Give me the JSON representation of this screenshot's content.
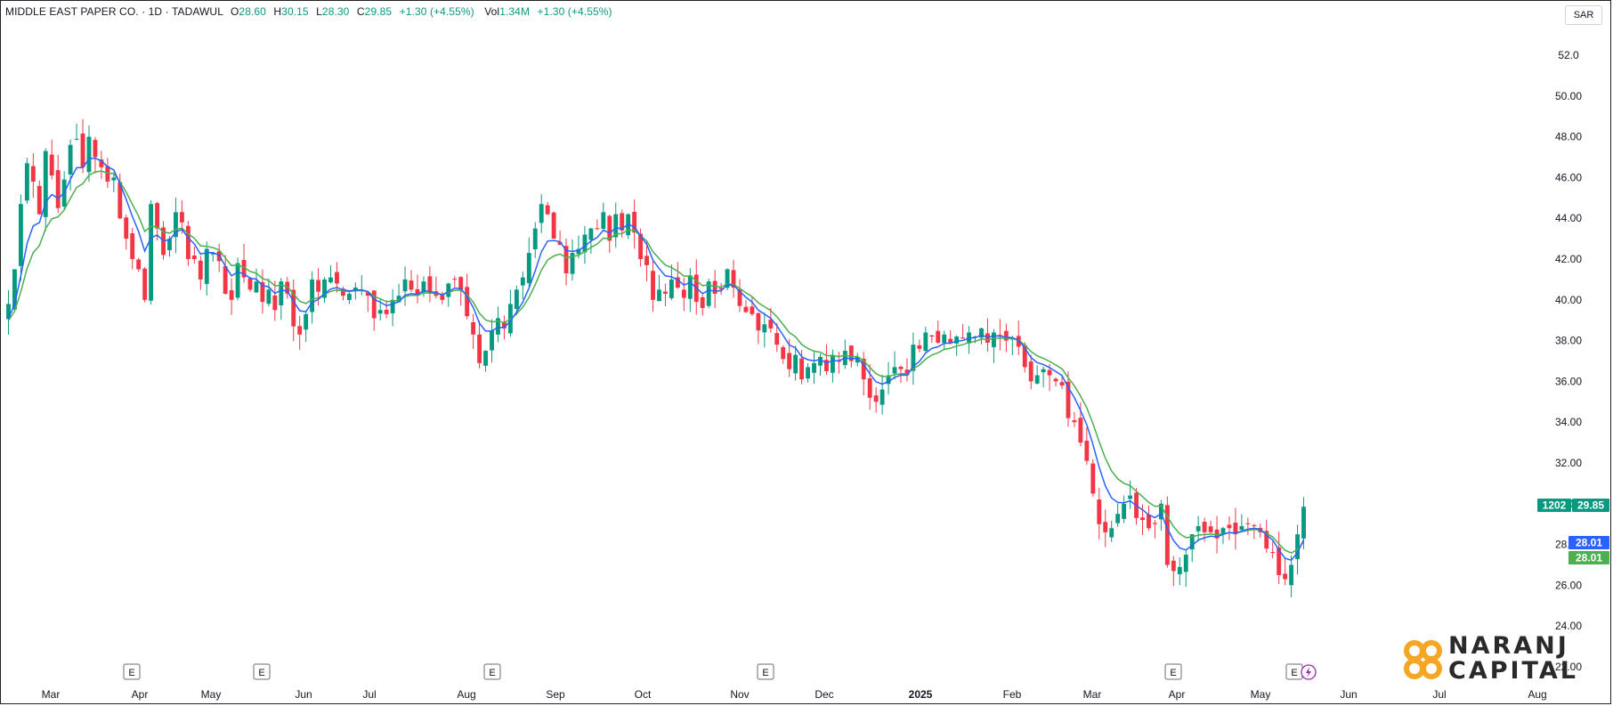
{
  "header": {
    "symbol": "MIDDLE EAST PAPER CO. · 1D · TADAWUL",
    "open_label": "O",
    "open": "28.60",
    "high_label": "H",
    "high": "30.15",
    "low_label": "L",
    "low": "28.30",
    "close_label": "C",
    "close": "29.85",
    "change": "+1.30 (+4.55%)",
    "vol_label": "Vol",
    "vol": "1.34M",
    "vol_change": "+1.30 (+4.55%)"
  },
  "currency": "SAR",
  "price_tags": {
    "ticker": "1202",
    "last": "29.85",
    "ema_fast": "28.01",
    "ema_slow": "28.01"
  },
  "logo": {
    "line1": "NARANJ",
    "line2": "CAPITAL"
  },
  "earnings_marker": "E",
  "colors": {
    "up": "#089981",
    "down": "#f23645",
    "ema_fast": "#2962ff",
    "ema_slow": "#4caf50",
    "tag_last": "#089981",
    "logo_orange": "#f5a623"
  },
  "chart_data": {
    "type": "candlestick",
    "title": "",
    "ylim": [
      21.2,
      53.5
    ],
    "y_ticks": [
      "52.0",
      "50.00",
      "48.00",
      "46.00",
      "44.00",
      "42.00",
      "40.00",
      "38.00",
      "36.00",
      "34.00",
      "32.00",
      "30.00",
      "28.00",
      "26.00",
      "24.00",
      "22.00"
    ],
    "x_ticks": [
      "Mar",
      "Apr",
      "May",
      "Jun",
      "Jul",
      "Aug",
      "Sep",
      "Oct",
      "Nov",
      "Dec",
      "2025",
      "Feb",
      "Mar",
      "Apr",
      "May",
      "Jun",
      "Jul",
      "Aug"
    ],
    "earnings_events": [
      "Apr",
      "May",
      "Aug",
      "Nov",
      "Apr",
      "May"
    ],
    "series": [
      {
        "name": "price",
        "closes": [
          39.8,
          41.5,
          44.7,
          46.7,
          45.8,
          44.2,
          47.3,
          46.1,
          44.5,
          45.9,
          47.6,
          47.9,
          46.5,
          48.0,
          47.0,
          46.5,
          45.8,
          46.0,
          44.0,
          43.0,
          42.0,
          41.5,
          40.0,
          44.7,
          43.5,
          42.2,
          43.0,
          44.3,
          43.8,
          42.0,
          42.0,
          41.0,
          42.5,
          42.3,
          41.9,
          40.3,
          40.0,
          41.8,
          41.1,
          40.5,
          40.9,
          39.9,
          40.5,
          39.5,
          40.9,
          40.3,
          38.7,
          38.3,
          39.3,
          41.0,
          40.4,
          41.0,
          41.1,
          40.8,
          40.2,
          40.3,
          40.6,
          40.5,
          40.2,
          39.1,
          39.5,
          39.3,
          40.0,
          40.2,
          41.0,
          40.5,
          40.2,
          40.9,
          40.3,
          40.2,
          40.0,
          40.8,
          41.0,
          40.5,
          39.2,
          38.3,
          36.9,
          37.5,
          38.5,
          39.1,
          38.6,
          39.8,
          40.5,
          41.1,
          42.3,
          43.5,
          44.7,
          44.2,
          43.0,
          42.7,
          41.3,
          42.3,
          42.5,
          43.2,
          43.5,
          43.5,
          44.3,
          42.9,
          44.2,
          43.4,
          44.2,
          43.3,
          42.0,
          41.7,
          40.0,
          40.5,
          40.3,
          41.0,
          40.6,
          40.1,
          41.2,
          39.9,
          39.6,
          40.9,
          40.3,
          40.5,
          41.5,
          40.6,
          39.7,
          39.4,
          39.3,
          38.5,
          38.8,
          38.6,
          37.8,
          37.1,
          36.6,
          37.3,
          36.1,
          36.7,
          36.9,
          37.2,
          36.5,
          37.3,
          37.0,
          37.5,
          37.0,
          37.2,
          36.1,
          35.2,
          35.0,
          35.6,
          36.3,
          36.7,
          36.6,
          36.3,
          37.8,
          37.6,
          38.4,
          38.2,
          37.9,
          38.3,
          37.9,
          38.2,
          38.1,
          38.4,
          38.2,
          38.6,
          37.9,
          38.4,
          38.2,
          38.0,
          38.1,
          37.7,
          36.7,
          36.0,
          36.3,
          36.6,
          36.3,
          36.0,
          35.8,
          34.2,
          34.0,
          33.0,
          32.1,
          30.5,
          29.0,
          28.6,
          28.8,
          29.5,
          30.0,
          30.4,
          29.3,
          29.2,
          28.8,
          29.0,
          30.0,
          27.0,
          26.7,
          26.9,
          27.5,
          28.5,
          28.9,
          28.6,
          28.6,
          28.3,
          28.8,
          28.8,
          28.5,
          28.9,
          29.0,
          28.9,
          28.6,
          27.8,
          27.6,
          26.5,
          26.3,
          27.0,
          28.5,
          29.85
        ]
      }
    ]
  }
}
